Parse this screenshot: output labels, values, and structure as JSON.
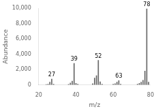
{
  "chart_data": {
    "type": "bar",
    "xlabel": "m/z",
    "ylabel": "Abundance",
    "x": [
      24,
      25,
      26,
      27,
      28,
      36,
      37,
      38,
      39,
      40,
      41,
      49,
      50,
      51,
      52,
      53,
      54,
      60,
      61,
      62,
      63,
      64,
      73,
      74,
      75,
      76,
      77,
      78,
      79
    ],
    "values": [
      50,
      80,
      350,
      750,
      100,
      60,
      250,
      500,
      2800,
      200,
      80,
      150,
      900,
      1200,
      3200,
      400,
      80,
      80,
      150,
      350,
      550,
      100,
      80,
      200,
      350,
      600,
      1800,
      9900,
      350
    ],
    "color": "#666666",
    "xlim": [
      20,
      80
    ],
    "ylim": [
      0,
      10000
    ],
    "xticks": [
      20,
      40,
      60,
      80
    ],
    "yticks": [
      0,
      2000,
      4000,
      6000,
      8000,
      10000
    ],
    "annotations": [
      {
        "x": 27,
        "y": 750,
        "text": "27"
      },
      {
        "x": 39,
        "y": 2800,
        "text": "39"
      },
      {
        "x": 52,
        "y": 3200,
        "text": "52"
      },
      {
        "x": 63,
        "y": 550,
        "text": "63"
      },
      {
        "x": 78,
        "y": 9900,
        "text": "78"
      }
    ],
    "grid": false
  }
}
